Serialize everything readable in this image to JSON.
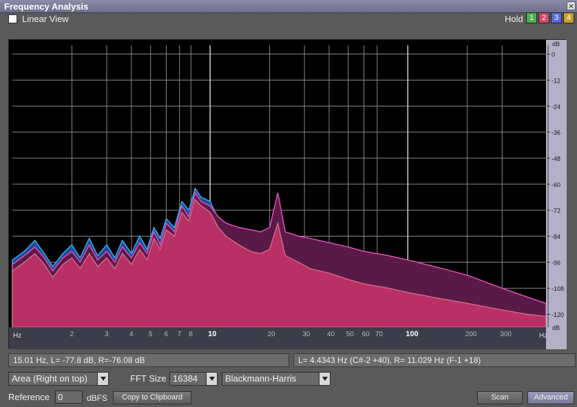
{
  "window": {
    "title": "Frequency Analysis",
    "close_glyph": "×"
  },
  "toolbar": {
    "linear_view_label": "Linear View",
    "linear_view_checked": false,
    "hold_label": "Hold",
    "hold_buttons": [
      {
        "label": "1",
        "color": "#4caf50"
      },
      {
        "label": "2",
        "color": "#d04a6a"
      },
      {
        "label": "3",
        "color": "#5a6ad8"
      },
      {
        "label": "4",
        "color": "#c8a030"
      }
    ]
  },
  "chart_data": {
    "type": "area",
    "x_scale": "log",
    "x_unit": "Hz",
    "y_unit": "dB",
    "xlim": [
      1,
      500
    ],
    "ylim": [
      -126,
      4
    ],
    "x_ticks": [
      {
        "v": 2,
        "label": "2",
        "major": false
      },
      {
        "v": 3,
        "label": "3",
        "major": false
      },
      {
        "v": 4,
        "label": "4",
        "major": false
      },
      {
        "v": 5,
        "label": "5",
        "major": false
      },
      {
        "v": 6,
        "label": "6",
        "major": false
      },
      {
        "v": 7,
        "label": "7",
        "major": false
      },
      {
        "v": 8,
        "label": "8",
        "major": false
      },
      {
        "v": 10,
        "label": "10",
        "major": true
      },
      {
        "v": 20,
        "label": "20",
        "major": false
      },
      {
        "v": 30,
        "label": "30",
        "major": false
      },
      {
        "v": 40,
        "label": "40",
        "major": false
      },
      {
        "v": 50,
        "label": "50",
        "major": false
      },
      {
        "v": 60,
        "label": "60",
        "major": false
      },
      {
        "v": 70,
        "label": "70",
        "major": false
      },
      {
        "v": 100,
        "label": "100",
        "major": true
      },
      {
        "v": 200,
        "label": "200",
        "major": false
      },
      {
        "v": 300,
        "label": "300",
        "major": false
      }
    ],
    "y_ticks": [
      0,
      -12,
      -24,
      -36,
      -48,
      -60,
      -72,
      -84,
      -96,
      -108,
      -120
    ],
    "series": [
      {
        "name": "",
        "color": "#1a4a9a",
        "edge": "#3ab0f0",
        "points": [
          [
            1,
            -95
          ],
          [
            1.15,
            -91
          ],
          [
            1.3,
            -86
          ],
          [
            1.45,
            -92
          ],
          [
            1.6,
            -98
          ],
          [
            1.8,
            -92
          ],
          [
            2,
            -88
          ],
          [
            2.2,
            -94
          ],
          [
            2.45,
            -85
          ],
          [
            2.7,
            -93
          ],
          [
            3,
            -88
          ],
          [
            3.3,
            -94
          ],
          [
            3.6,
            -86
          ],
          [
            4,
            -92
          ],
          [
            4.4,
            -84
          ],
          [
            4.8,
            -90
          ],
          [
            5.2,
            -80
          ],
          [
            5.6,
            -85
          ],
          [
            6,
            -76
          ],
          [
            6.6,
            -80
          ],
          [
            7.2,
            -68
          ],
          [
            7.8,
            -72
          ],
          [
            8.4,
            -62
          ],
          [
            9,
            -66
          ],
          [
            10,
            -68
          ],
          [
            11,
            -76
          ],
          [
            12,
            -79
          ],
          [
            14,
            -82
          ],
          [
            16,
            -84
          ],
          [
            18,
            -86
          ],
          [
            20,
            -86
          ],
          [
            24,
            -87
          ],
          [
            28,
            -89
          ],
          [
            32,
            -90
          ],
          [
            40,
            -92
          ],
          [
            50,
            -93
          ],
          [
            60,
            -95
          ],
          [
            80,
            -97
          ],
          [
            100,
            -98
          ],
          [
            150,
            -102
          ],
          [
            200,
            -105
          ],
          [
            300,
            -110
          ],
          [
            400,
            -114
          ],
          [
            500,
            -116
          ]
        ]
      },
      {
        "name": "",
        "color": "#5a1a48",
        "edge": "#e050b8",
        "points": [
          [
            1,
            -97
          ],
          [
            1.15,
            -93
          ],
          [
            1.3,
            -89
          ],
          [
            1.45,
            -94
          ],
          [
            1.6,
            -100
          ],
          [
            1.8,
            -94
          ],
          [
            2,
            -91
          ],
          [
            2.2,
            -96
          ],
          [
            2.45,
            -88
          ],
          [
            2.7,
            -95
          ],
          [
            3,
            -91
          ],
          [
            3.3,
            -96
          ],
          [
            3.6,
            -89
          ],
          [
            4,
            -94
          ],
          [
            4.4,
            -87
          ],
          [
            4.8,
            -92
          ],
          [
            5.2,
            -82
          ],
          [
            5.6,
            -88
          ],
          [
            6,
            -78
          ],
          [
            6.6,
            -82
          ],
          [
            7.2,
            -70
          ],
          [
            7.8,
            -75
          ],
          [
            8.4,
            -64
          ],
          [
            9,
            -68
          ],
          [
            10,
            -70
          ],
          [
            11,
            -75
          ],
          [
            12,
            -78
          ],
          [
            14,
            -80
          ],
          [
            16,
            -81
          ],
          [
            18,
            -82
          ],
          [
            20,
            -80
          ],
          [
            22,
            -64
          ],
          [
            24,
            -82
          ],
          [
            28,
            -84
          ],
          [
            32,
            -85
          ],
          [
            40,
            -87
          ],
          [
            50,
            -89
          ],
          [
            60,
            -91
          ],
          [
            80,
            -93
          ],
          [
            100,
            -95
          ],
          [
            150,
            -99
          ],
          [
            200,
            -102
          ],
          [
            300,
            -108
          ],
          [
            400,
            -112
          ],
          [
            500,
            -115
          ]
        ]
      },
      {
        "name": "",
        "color": "#b83066",
        "edge": "#d06a80",
        "points": [
          [
            1,
            -100
          ],
          [
            1.15,
            -96
          ],
          [
            1.3,
            -92
          ],
          [
            1.45,
            -97
          ],
          [
            1.6,
            -103
          ],
          [
            1.8,
            -97
          ],
          [
            2,
            -94
          ],
          [
            2.2,
            -99
          ],
          [
            2.45,
            -92
          ],
          [
            2.7,
            -98
          ],
          [
            3,
            -94
          ],
          [
            3.3,
            -99
          ],
          [
            3.6,
            -92
          ],
          [
            4,
            -97
          ],
          [
            4.4,
            -90
          ],
          [
            4.8,
            -95
          ],
          [
            5.2,
            -85
          ],
          [
            5.6,
            -90
          ],
          [
            6,
            -81
          ],
          [
            6.6,
            -84
          ],
          [
            7.2,
            -73
          ],
          [
            7.8,
            -77
          ],
          [
            8.4,
            -67
          ],
          [
            9,
            -70
          ],
          [
            10,
            -73
          ],
          [
            11,
            -80
          ],
          [
            12,
            -84
          ],
          [
            14,
            -88
          ],
          [
            16,
            -91
          ],
          [
            18,
            -92
          ],
          [
            20,
            -90
          ],
          [
            22,
            -78
          ],
          [
            24,
            -93
          ],
          [
            28,
            -96
          ],
          [
            32,
            -99
          ],
          [
            40,
            -101
          ],
          [
            50,
            -104
          ],
          [
            60,
            -106
          ],
          [
            80,
            -108
          ],
          [
            100,
            -110
          ],
          [
            150,
            -113
          ],
          [
            200,
            -115
          ],
          [
            300,
            -118
          ],
          [
            400,
            -120
          ],
          [
            500,
            -121
          ]
        ]
      }
    ]
  },
  "status": {
    "left": "15.01 Hz, L= -77.8 dB, R=-76.08 dB",
    "right": "L= 4.4343 Hz (C#-2 +40), R= 11.029 Hz (F-1 +18)"
  },
  "controls": {
    "view_mode": "Area (Right on top)",
    "fft_size_label": "FFT Size",
    "fft_size": "16384",
    "window_function": "Blackmann-Harris",
    "reference_label": "Reference",
    "reference_value": "0",
    "dbfs_label": "dBFS",
    "copy_button": "Copy to Clipboard",
    "scan_button": "Scan",
    "advanced_button": "Advanced"
  }
}
